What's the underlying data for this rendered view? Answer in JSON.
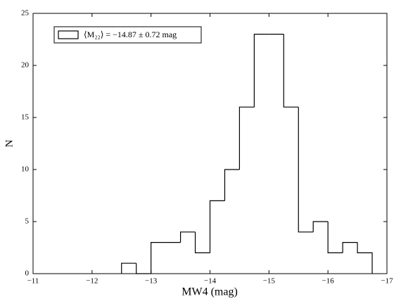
{
  "chart_data": {
    "type": "histogram",
    "xlabel": "MW4 (mag)",
    "ylabel": "N",
    "bins": [
      -12.5,
      -12.75,
      -13,
      -13.25,
      -13.5,
      -13.75,
      -14,
      -14.25,
      -14.5,
      -14.75,
      -15,
      -15.25,
      -15.5,
      -15.75,
      -16,
      -16.25,
      -16.5,
      -16.75
    ],
    "series": [
      {
        "name": "⟨M₂₂⟩ = −14.87 ± 0.72 mag",
        "color": "#000000",
        "values": [
          1,
          0,
          3,
          3,
          4,
          2,
          7,
          10,
          16,
          23,
          23,
          16,
          4,
          5,
          2,
          3,
          2
        ]
      }
    ],
    "xlim": [
      -11,
      -17
    ],
    "xticks": [
      {
        "value": -11,
        "label": "−11"
      },
      {
        "value": -12,
        "label": "−12"
      },
      {
        "value": -13,
        "label": "−13"
      },
      {
        "value": -14,
        "label": "−14"
      },
      {
        "value": -15,
        "label": "−15"
      },
      {
        "value": -16,
        "label": "−16"
      },
      {
        "value": -17,
        "label": "−17"
      }
    ],
    "ylim": [
      0,
      25
    ],
    "yticks": [
      0,
      5,
      10,
      15,
      20,
      25
    ],
    "legend": "upper-left"
  }
}
